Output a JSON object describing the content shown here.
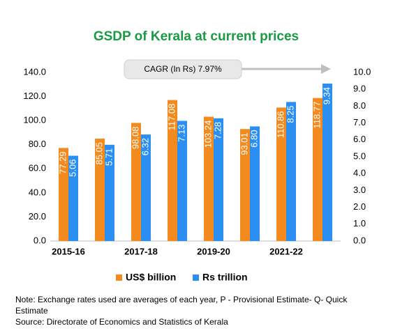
{
  "chart_data": {
    "type": "bar",
    "title": "GSDP of Kerala at current prices",
    "annotation": "CAGR (In Rs) 7.97%",
    "categories": [
      "2015-16",
      null,
      "2017-18",
      null,
      "2019-20",
      null,
      "2021-22",
      null
    ],
    "series": [
      {
        "name": "US$ billion",
        "color": "#f28a1e",
        "values": [
          77.29,
          85.05,
          98.08,
          117.08,
          103.24,
          93.01,
          110.86,
          118.77
        ],
        "value_labels": [
          "77.29",
          "85.05",
          "98.08",
          "117.08",
          "103.24",
          "93.01",
          "110.86",
          "118.77"
        ]
      },
      {
        "name": "Rs trillion",
        "color": "#2b8ff2",
        "axis": "y2",
        "values": [
          5.06,
          5.71,
          6.32,
          7.13,
          7.28,
          6.8,
          8.25,
          9.34
        ],
        "value_labels": [
          "5.06",
          "5.71",
          "6.32",
          "7.13",
          "7.28",
          "6.80",
          "8.25",
          "9.34"
        ]
      }
    ],
    "ylim": [
      0,
      140
    ],
    "yticks": [
      {
        "value": 0,
        "label": "0.0"
      },
      {
        "value": 20,
        "label": "20.0"
      },
      {
        "value": 40,
        "label": "40.0"
      },
      {
        "value": 60,
        "label": "60.0"
      },
      {
        "value": 80,
        "label": "80.0"
      },
      {
        "value": 100,
        "label": "100.0"
      },
      {
        "value": 120,
        "label": "120.0"
      },
      {
        "value": 140,
        "label": "140.0"
      }
    ],
    "y2lim": [
      0,
      10
    ],
    "y2ticks": [
      {
        "value": 0,
        "label": "0.0"
      },
      {
        "value": 1,
        "label": "1.0"
      },
      {
        "value": 2,
        "label": "2.0"
      },
      {
        "value": 3,
        "label": "3.0"
      },
      {
        "value": 4,
        "label": "4.0"
      },
      {
        "value": 5,
        "label": "5.0"
      },
      {
        "value": 6,
        "label": "6.0"
      },
      {
        "value": 7,
        "label": "7.0"
      },
      {
        "value": 8,
        "label": "8.0"
      },
      {
        "value": 9,
        "label": "9.0"
      },
      {
        "value": 10,
        "label": "10.0"
      }
    ],
    "grid": false,
    "note": "Note: Exchange rates used are averages of each year, P - Provisional Estimate- Q- Quick Estimate",
    "source": "Source: Directorate of Economics and Statistics of Kerala"
  }
}
